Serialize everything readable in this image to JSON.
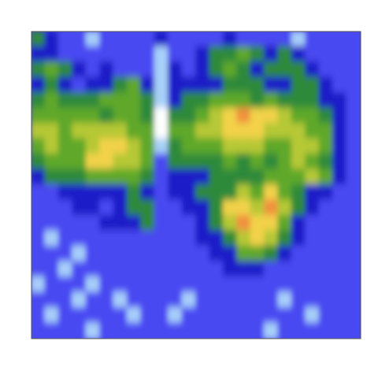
{
  "chart_data": {
    "type": "heatmap",
    "tick_labels": false,
    "zlim": [
      0,
      9
    ],
    "z": [
      [
        4,
        3,
        2,
        2,
        1,
        2,
        2,
        2,
        2,
        3,
        2,
        2,
        2,
        2,
        3,
        2,
        2,
        2,
        2,
        1,
        2,
        2,
        2,
        2
      ],
      [
        3,
        3,
        2,
        2,
        2,
        2,
        2,
        2,
        2,
        1,
        2,
        2,
        3,
        4,
        4,
        5,
        4,
        3,
        4,
        3,
        2,
        2,
        2,
        2
      ],
      [
        4,
        5,
        4,
        3,
        2,
        3,
        2,
        2,
        2,
        1,
        3,
        2,
        3,
        4,
        5,
        4,
        3,
        4,
        4,
        4,
        3,
        2,
        2,
        2
      ],
      [
        3,
        4,
        3,
        2,
        3,
        3,
        4,
        5,
        3,
        1,
        3,
        3,
        3,
        3,
        4,
        4,
        4,
        3,
        3,
        4,
        4,
        3,
        2,
        2
      ],
      [
        4,
        5,
        4,
        4,
        4,
        5,
        5,
        5,
        4,
        1,
        3,
        4,
        4,
        5,
        5,
        5,
        4,
        5,
        4,
        4,
        4,
        3,
        3,
        2
      ],
      [
        5,
        5,
        5,
        5,
        5,
        4,
        5,
        5,
        4,
        0,
        4,
        4,
        5,
        6,
        7,
        8,
        7,
        7,
        6,
        5,
        5,
        4,
        3,
        2
      ],
      [
        6,
        6,
        5,
        6,
        6,
        6,
        6,
        5,
        5,
        0,
        5,
        5,
        6,
        6,
        7,
        7,
        7,
        6,
        6,
        6,
        5,
        5,
        3,
        2
      ],
      [
        5,
        6,
        5,
        5,
        6,
        7,
        7,
        6,
        5,
        1,
        4,
        5,
        5,
        5,
        6,
        6,
        6,
        5,
        5,
        6,
        6,
        5,
        3,
        2
      ],
      [
        4,
        5,
        5,
        5,
        7,
        7,
        6,
        6,
        5,
        2,
        4,
        4,
        4,
        4,
        5,
        4,
        5,
        4,
        5,
        6,
        5,
        4,
        3,
        2
      ],
      [
        3,
        4,
        4,
        4,
        5,
        5,
        5,
        5,
        4,
        2,
        3,
        3,
        3,
        4,
        4,
        4,
        4,
        5,
        5,
        5,
        6,
        5,
        3,
        2
      ],
      [
        2,
        2,
        3,
        3,
        3,
        3,
        3,
        4,
        3,
        2,
        3,
        3,
        4,
        4,
        4,
        6,
        5,
        7,
        5,
        4,
        3,
        3,
        2,
        2
      ],
      [
        2,
        2,
        2,
        3,
        3,
        2,
        3,
        4,
        4,
        2,
        2,
        3,
        3,
        4,
        7,
        7,
        6,
        8,
        6,
        4,
        3,
        2,
        2,
        2
      ],
      [
        2,
        2,
        2,
        2,
        2,
        3,
        3,
        3,
        4,
        2,
        2,
        2,
        3,
        4,
        6,
        8,
        7,
        7,
        5,
        3,
        2,
        2,
        2,
        2
      ],
      [
        2,
        1,
        2,
        2,
        2,
        2,
        2,
        2,
        2,
        2,
        2,
        2,
        3,
        3,
        4,
        6,
        7,
        6,
        4,
        3,
        2,
        2,
        2,
        2
      ],
      [
        2,
        2,
        2,
        1,
        2,
        2,
        2,
        2,
        2,
        2,
        2,
        2,
        2,
        3,
        3,
        5,
        5,
        4,
        3,
        2,
        2,
        2,
        2,
        2
      ],
      [
        2,
        2,
        1,
        2,
        2,
        2,
        2,
        2,
        2,
        2,
        2,
        2,
        2,
        2,
        3,
        3,
        3,
        2,
        2,
        2,
        2,
        2,
        2,
        2
      ],
      [
        1,
        2,
        2,
        2,
        1,
        2,
        2,
        2,
        2,
        2,
        2,
        2,
        2,
        2,
        2,
        2,
        2,
        2,
        2,
        2,
        2,
        2,
        2,
        2
      ],
      [
        2,
        2,
        2,
        1,
        2,
        2,
        1,
        2,
        2,
        2,
        2,
        1,
        2,
        2,
        2,
        2,
        2,
        2,
        1,
        2,
        2,
        2,
        2,
        2
      ],
      [
        2,
        1,
        2,
        2,
        2,
        2,
        2,
        1,
        2,
        2,
        1,
        2,
        2,
        2,
        2,
        2,
        2,
        2,
        2,
        2,
        1,
        2,
        2,
        2
      ],
      [
        2,
        2,
        2,
        2,
        1,
        2,
        2,
        2,
        2,
        2,
        2,
        2,
        2,
        2,
        2,
        2,
        2,
        1,
        2,
        2,
        2,
        2,
        2,
        2
      ]
    ]
  }
}
